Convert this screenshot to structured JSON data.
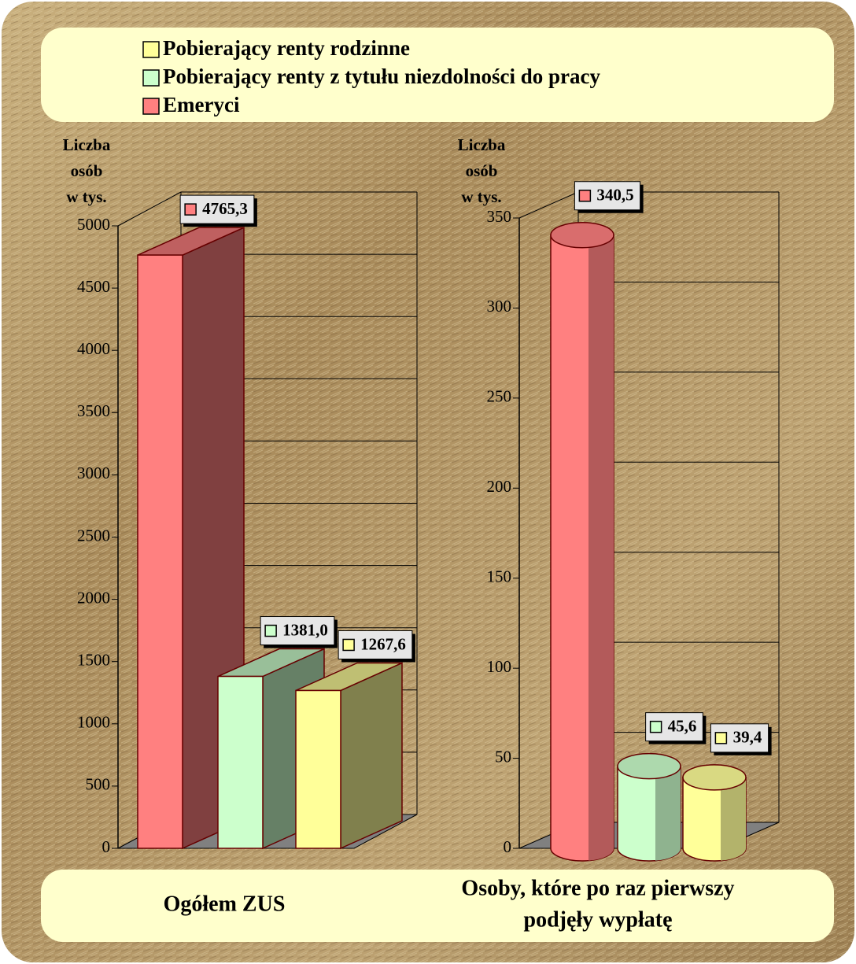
{
  "chart_data": [
    {
      "type": "bar",
      "title": [
        "Ogółem ZUS"
      ],
      "y_label": [
        "Liczba",
        "osób",
        "w tys."
      ],
      "ylim": [
        0,
        5000
      ],
      "yticks": [
        0,
        500,
        1000,
        1500,
        2000,
        2500,
        3000,
        3500,
        4000,
        4500,
        5000
      ],
      "series": [
        {
          "name": "Emeryci",
          "color": "#ff8080",
          "values": [
            4765.3
          ],
          "value_labels": [
            "4765,3"
          ]
        },
        {
          "name": "Pobierający renty z tytułu niezdolności do pracy",
          "color": "#ccffcc",
          "values": [
            1381.0
          ],
          "value_labels": [
            "1381,0"
          ]
        },
        {
          "name": "Pobierający renty rodzinne",
          "color": "#ffff99",
          "values": [
            1267.6
          ],
          "value_labels": [
            "1267,6"
          ]
        }
      ]
    },
    {
      "type": "cylinder",
      "title": [
        "Osoby, które po raz pierwszy",
        "podjęły wypłatę"
      ],
      "y_label": [
        "Liczba",
        "osób",
        "w tys."
      ],
      "ylim": [
        0,
        350
      ],
      "yticks": [
        0,
        50,
        100,
        150,
        200,
        250,
        300,
        350
      ],
      "series": [
        {
          "color": "#ff8080",
          "values": [
            340.5
          ],
          "value_labels": [
            "340,5"
          ]
        },
        {
          "color": "#ccffcc",
          "values": [
            45.6
          ],
          "value_labels": [
            "45,6"
          ]
        },
        {
          "color": "#ffff99",
          "values": [
            39.4
          ],
          "value_labels": [
            "39,4"
          ]
        }
      ]
    }
  ]
}
